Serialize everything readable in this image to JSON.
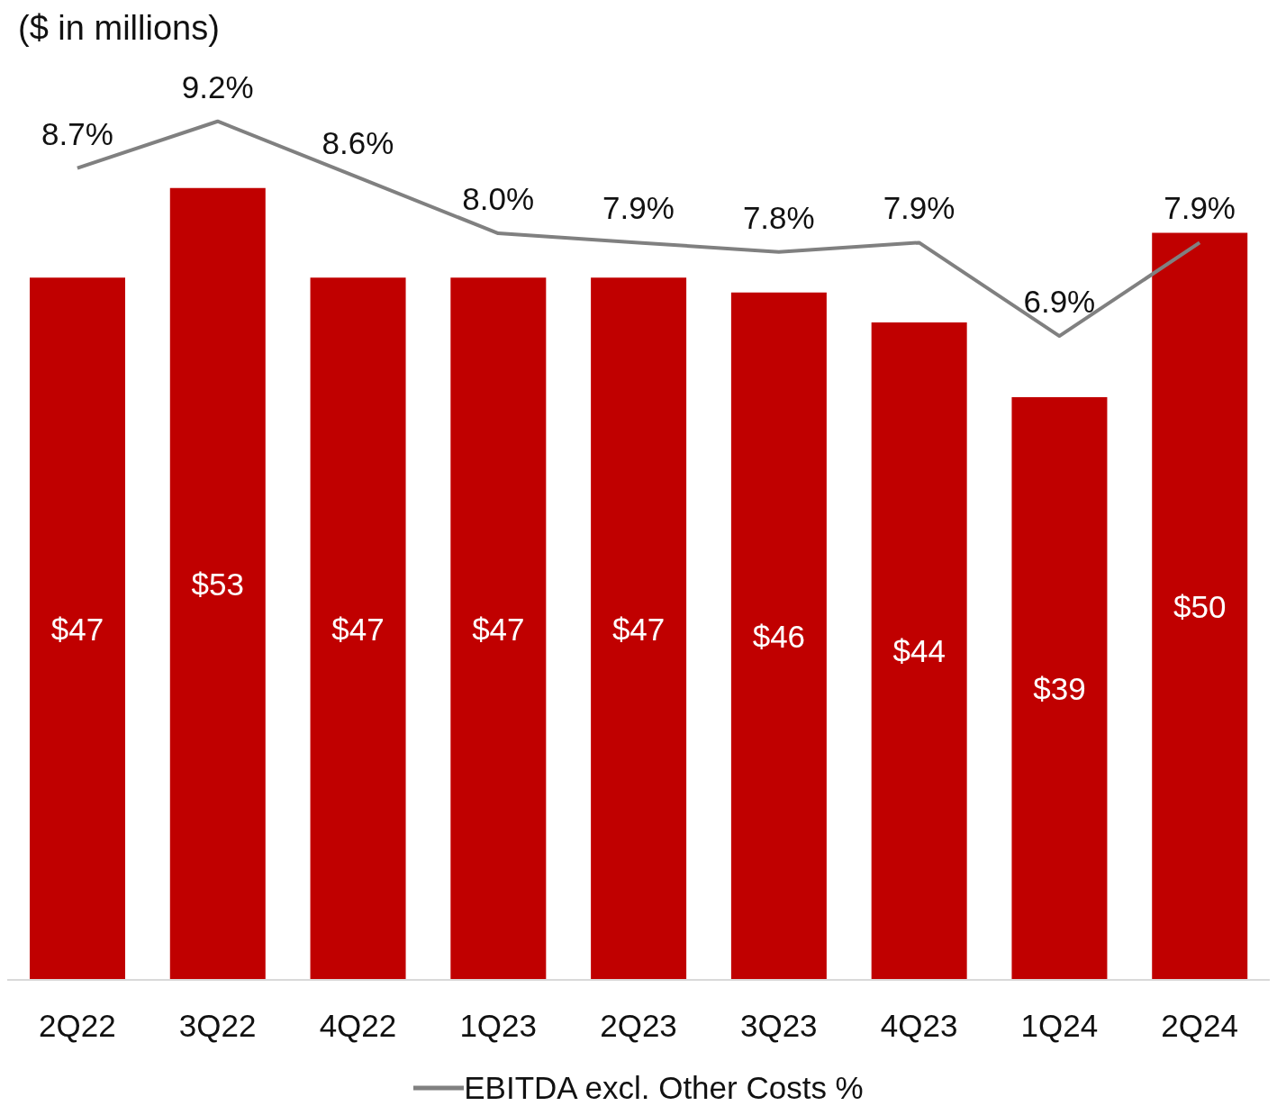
{
  "chart_data": {
    "type": "bar",
    "ylabel": "($ in millions)",
    "categories": [
      "2Q22",
      "3Q22",
      "4Q22",
      "1Q23",
      "2Q23",
      "3Q23",
      "4Q23",
      "1Q24",
      "2Q24"
    ],
    "series": [
      {
        "color": "#c00000",
        "values": [
          47,
          53,
          47,
          47,
          47,
          46,
          44,
          39,
          50
        ],
        "value_labels": [
          "$47",
          "$53",
          "$47",
          "$47",
          "$47",
          "$46",
          "$44",
          "$39",
          "$50"
        ]
      },
      {
        "type": "line",
        "axis": "y2",
        "name": "EBITDA excl. Other Costs  %",
        "color": "#808080",
        "values": [
          8.7,
          9.2,
          8.6,
          8.0,
          7.9,
          7.8,
          7.9,
          6.9,
          7.9
        ],
        "value_labels": [
          "8.7%",
          "9.2%",
          "8.6%",
          "8.0%",
          "7.9%",
          "7.8%",
          "7.9%",
          "6.9%",
          "7.9%"
        ]
      }
    ],
    "legend": "bottom",
    "grid": false,
    "marker": "none"
  }
}
